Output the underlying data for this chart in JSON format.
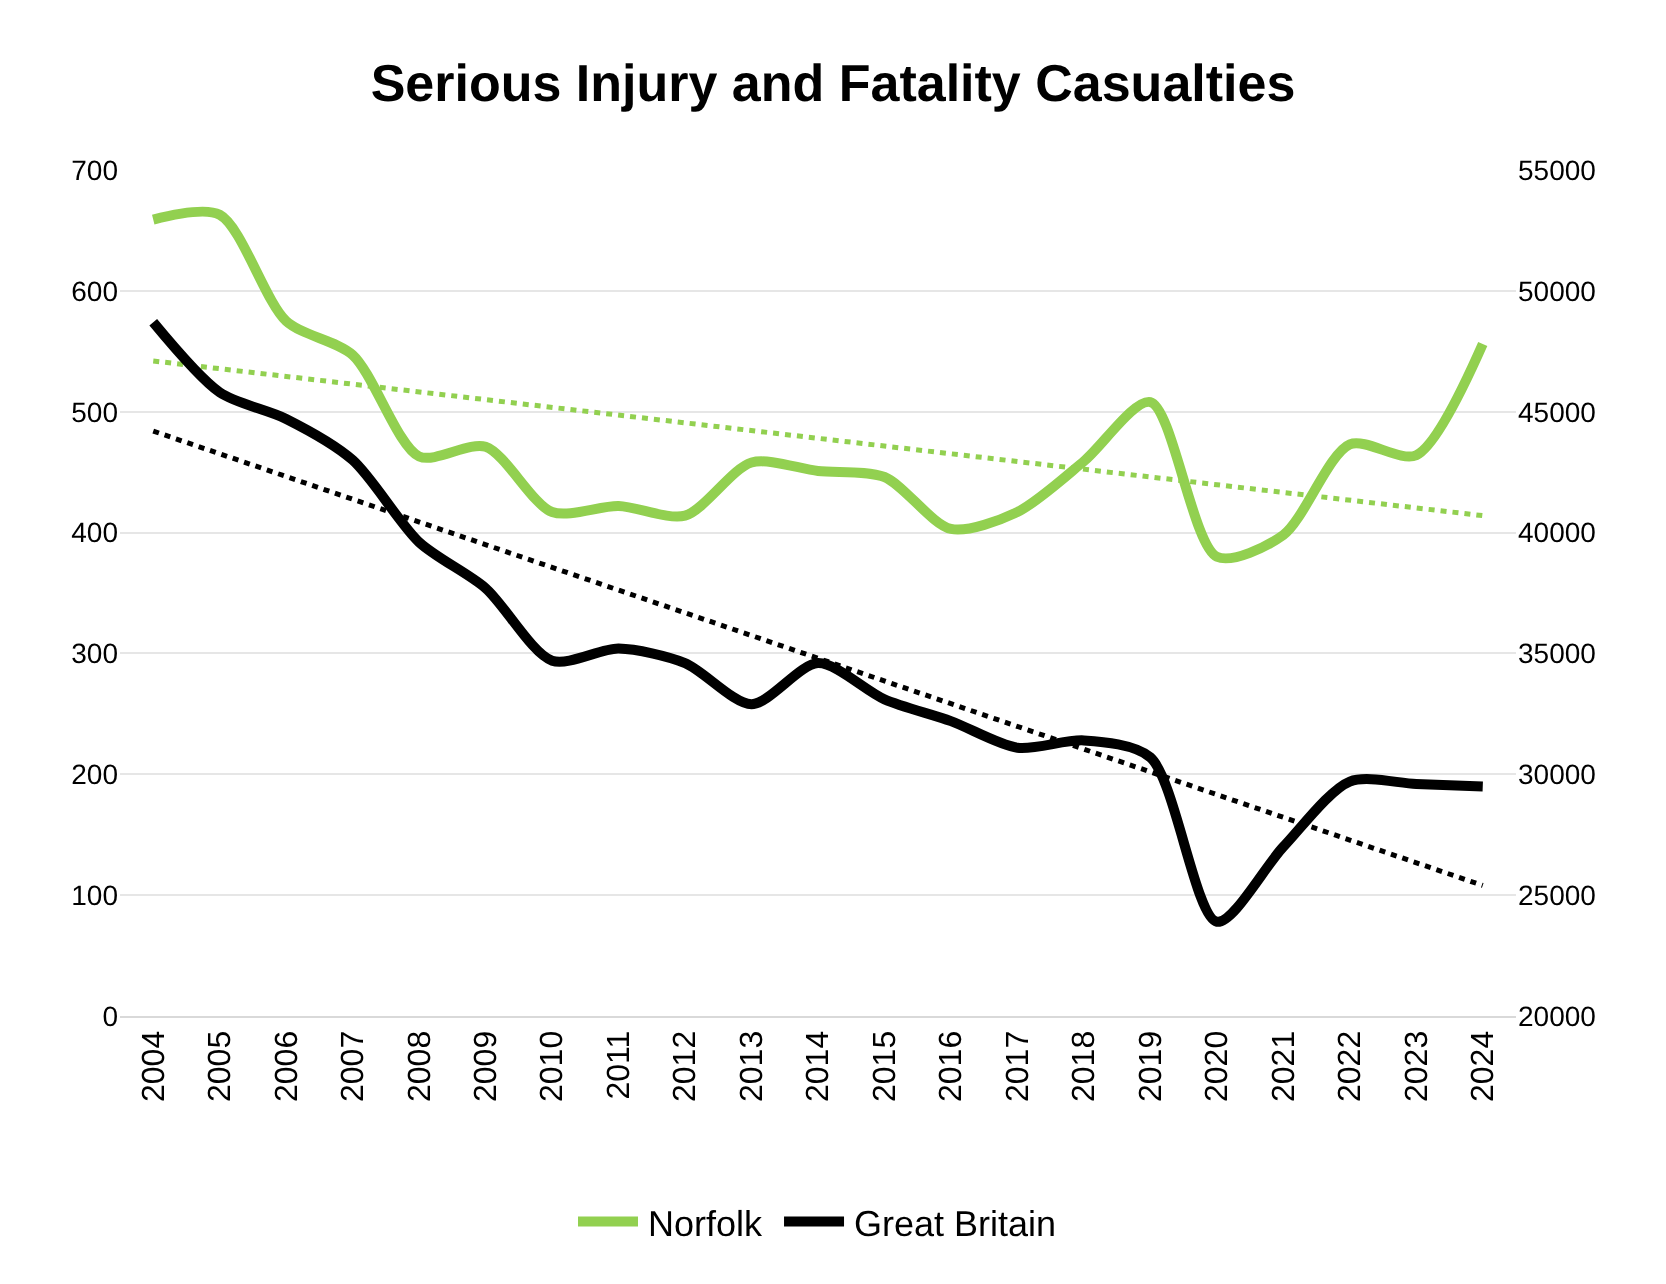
{
  "chart_data": {
    "type": "line",
    "title": "Serious Injury and Fatality Casualties",
    "categories": [
      "2004",
      "2005",
      "2006",
      "2007",
      "2008",
      "2009",
      "2010",
      "2011",
      "2012",
      "2013",
      "2014",
      "2015",
      "2016",
      "2017",
      "2018",
      "2019",
      "2020",
      "2021",
      "2022",
      "2023",
      "2024"
    ],
    "series": [
      {
        "name": "Norfolk",
        "color": "#92d050",
        "values": [
          659,
          663,
          575,
          547,
          463,
          471,
          417,
          422,
          414,
          458,
          451,
          446,
          403,
          417,
          459,
          508,
          380,
          398,
          473,
          464,
          556
        ]
      },
      {
        "name": "Great Britain",
        "color": "#000000",
        "axis": "y2",
        "values": [
          48700,
          45800,
          44700,
          43000,
          39600,
          37700,
          34700,
          35200,
          34600,
          32900,
          34600,
          33100,
          32200,
          31100,
          31400,
          30700,
          23900,
          27000,
          29700,
          29600,
          29500
        ]
      },
      {
        "color": "#92d050",
        "line_style": "dotted",
        "values": [
          542,
          null,
          null,
          null,
          null,
          null,
          null,
          null,
          null,
          null,
          null,
          null,
          null,
          null,
          null,
          null,
          null,
          null,
          null,
          null,
          414
        ]
      },
      {
        "color": "#000000",
        "line_style": "dotted",
        "axis": "y2",
        "values": [
          44200,
          null,
          null,
          null,
          null,
          null,
          null,
          null,
          null,
          null,
          null,
          null,
          null,
          null,
          null,
          null,
          null,
          null,
          null,
          null,
          25400
        ]
      }
    ],
    "ylim": [
      0,
      700
    ],
    "yticks": [
      0,
      100,
      200,
      300,
      400,
      500,
      600,
      700
    ],
    "y2lim": [
      20000,
      55000
    ],
    "y2ticks": [
      20000,
      25000,
      30000,
      35000,
      40000,
      45000,
      50000,
      55000
    ],
    "grid": "y",
    "legend": "bottom",
    "line_style": "solid",
    "marker": "none"
  }
}
